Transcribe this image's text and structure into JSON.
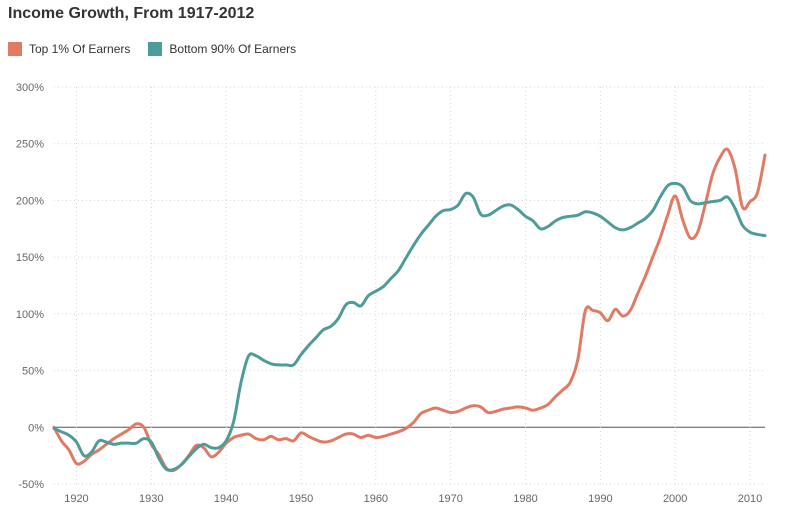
{
  "chart_data": {
    "type": "line",
    "title": "Income Growth, From 1917-2012",
    "xlim": [
      1917,
      2012
    ],
    "ylim": [
      -50,
      300
    ],
    "x_ticks": [
      1920,
      1930,
      1940,
      1950,
      1960,
      1970,
      1980,
      1990,
      2000,
      2010
    ],
    "x_tick_labels": [
      "1920",
      "1930",
      "1940",
      "1950",
      "1960",
      "1970",
      "1980",
      "1990",
      "2000",
      "2010"
    ],
    "y_ticks": [
      -50,
      0,
      50,
      100,
      150,
      200,
      250,
      300
    ],
    "y_tick_labels": [
      "-50%",
      "0%",
      "50%",
      "100%",
      "150%",
      "200%",
      "250%",
      "300%"
    ],
    "grid": true,
    "legend_position": "top-left",
    "series": [
      {
        "name": "Top 1% Of Earners",
        "color": "#e07a64",
        "points": [
          [
            1917,
            0
          ],
          [
            1918,
            -12
          ],
          [
            1919,
            -20
          ],
          [
            1920,
            -32
          ],
          [
            1921,
            -30
          ],
          [
            1922,
            -24
          ],
          [
            1923,
            -20
          ],
          [
            1924,
            -15
          ],
          [
            1925,
            -10
          ],
          [
            1926,
            -6
          ],
          [
            1927,
            -2
          ],
          [
            1928,
            3
          ],
          [
            1929,
            0
          ],
          [
            1930,
            -15
          ],
          [
            1931,
            -24
          ],
          [
            1932,
            -36
          ],
          [
            1933,
            -38
          ],
          [
            1934,
            -33
          ],
          [
            1935,
            -25
          ],
          [
            1936,
            -16
          ],
          [
            1937,
            -18
          ],
          [
            1938,
            -26
          ],
          [
            1939,
            -22
          ],
          [
            1940,
            -14
          ],
          [
            1941,
            -9
          ],
          [
            1942,
            -7
          ],
          [
            1943,
            -6
          ],
          [
            1944,
            -10
          ],
          [
            1945,
            -11
          ],
          [
            1946,
            -8
          ],
          [
            1947,
            -11
          ],
          [
            1948,
            -10
          ],
          [
            1949,
            -12
          ],
          [
            1950,
            -5
          ],
          [
            1951,
            -8
          ],
          [
            1952,
            -11
          ],
          [
            1953,
            -13
          ],
          [
            1954,
            -12
          ],
          [
            1955,
            -9
          ],
          [
            1956,
            -6
          ],
          [
            1957,
            -6
          ],
          [
            1958,
            -9
          ],
          [
            1959,
            -7
          ],
          [
            1960,
            -9
          ],
          [
            1961,
            -8
          ],
          [
            1962,
            -6
          ],
          [
            1963,
            -4
          ],
          [
            1964,
            -1
          ],
          [
            1965,
            4
          ],
          [
            1966,
            12
          ],
          [
            1967,
            15
          ],
          [
            1968,
            17
          ],
          [
            1969,
            15
          ],
          [
            1970,
            13
          ],
          [
            1971,
            14
          ],
          [
            1972,
            17
          ],
          [
            1973,
            19
          ],
          [
            1974,
            18
          ],
          [
            1975,
            13
          ],
          [
            1976,
            14
          ],
          [
            1977,
            16
          ],
          [
            1978,
            17
          ],
          [
            1979,
            18
          ],
          [
            1980,
            17
          ],
          [
            1981,
            15
          ],
          [
            1982,
            17
          ],
          [
            1983,
            20
          ],
          [
            1984,
            27
          ],
          [
            1985,
            33
          ],
          [
            1986,
            40
          ],
          [
            1987,
            60
          ],
          [
            1988,
            103
          ],
          [
            1989,
            103
          ],
          [
            1990,
            101
          ],
          [
            1991,
            94
          ],
          [
            1992,
            104
          ],
          [
            1993,
            98
          ],
          [
            1994,
            103
          ],
          [
            1995,
            118
          ],
          [
            1996,
            133
          ],
          [
            1997,
            150
          ],
          [
            1998,
            167
          ],
          [
            1999,
            187
          ],
          [
            2000,
            204
          ],
          [
            2001,
            183
          ],
          [
            2002,
            167
          ],
          [
            2003,
            172
          ],
          [
            2004,
            196
          ],
          [
            2005,
            223
          ],
          [
            2006,
            238
          ],
          [
            2007,
            245
          ],
          [
            2008,
            228
          ],
          [
            2009,
            194
          ],
          [
            2010,
            199
          ],
          [
            2011,
            207
          ],
          [
            2012,
            240
          ]
        ]
      },
      {
        "name": "Bottom 90% Of Earners",
        "color": "#4e9c99",
        "points": [
          [
            1917,
            -1
          ],
          [
            1918,
            -4
          ],
          [
            1919,
            -7
          ],
          [
            1920,
            -13
          ],
          [
            1921,
            -25
          ],
          [
            1922,
            -22
          ],
          [
            1923,
            -12
          ],
          [
            1924,
            -13
          ],
          [
            1925,
            -15
          ],
          [
            1926,
            -14
          ],
          [
            1927,
            -14
          ],
          [
            1928,
            -14
          ],
          [
            1929,
            -10
          ],
          [
            1930,
            -13
          ],
          [
            1931,
            -27
          ],
          [
            1932,
            -37
          ],
          [
            1933,
            -37
          ],
          [
            1934,
            -33
          ],
          [
            1935,
            -26
          ],
          [
            1936,
            -19
          ],
          [
            1937,
            -15
          ],
          [
            1938,
            -18
          ],
          [
            1939,
            -18
          ],
          [
            1940,
            -12
          ],
          [
            1941,
            5
          ],
          [
            1942,
            40
          ],
          [
            1943,
            63
          ],
          [
            1944,
            63
          ],
          [
            1945,
            59
          ],
          [
            1946,
            56
          ],
          [
            1947,
            55
          ],
          [
            1948,
            55
          ],
          [
            1949,
            55
          ],
          [
            1950,
            64
          ],
          [
            1951,
            72
          ],
          [
            1952,
            79
          ],
          [
            1953,
            86
          ],
          [
            1954,
            89
          ],
          [
            1955,
            96
          ],
          [
            1956,
            108
          ],
          [
            1957,
            110
          ],
          [
            1958,
            107
          ],
          [
            1959,
            116
          ],
          [
            1960,
            120
          ],
          [
            1961,
            124
          ],
          [
            1962,
            131
          ],
          [
            1963,
            138
          ],
          [
            1964,
            149
          ],
          [
            1965,
            160
          ],
          [
            1966,
            170
          ],
          [
            1967,
            178
          ],
          [
            1968,
            186
          ],
          [
            1969,
            191
          ],
          [
            1970,
            192
          ],
          [
            1971,
            196
          ],
          [
            1972,
            206
          ],
          [
            1973,
            203
          ],
          [
            1974,
            188
          ],
          [
            1975,
            187
          ],
          [
            1976,
            191
          ],
          [
            1977,
            195
          ],
          [
            1978,
            196
          ],
          [
            1979,
            192
          ],
          [
            1980,
            186
          ],
          [
            1981,
            182
          ],
          [
            1982,
            175
          ],
          [
            1983,
            177
          ],
          [
            1984,
            182
          ],
          [
            1985,
            185
          ],
          [
            1986,
            186
          ],
          [
            1987,
            187
          ],
          [
            1988,
            190
          ],
          [
            1989,
            189
          ],
          [
            1990,
            186
          ],
          [
            1991,
            181
          ],
          [
            1992,
            176
          ],
          [
            1993,
            174
          ],
          [
            1994,
            176
          ],
          [
            1995,
            180
          ],
          [
            1996,
            184
          ],
          [
            1997,
            191
          ],
          [
            1998,
            203
          ],
          [
            1999,
            213
          ],
          [
            2000,
            215
          ],
          [
            2001,
            212
          ],
          [
            2002,
            200
          ],
          [
            2003,
            197
          ],
          [
            2004,
            198
          ],
          [
            2005,
            199
          ],
          [
            2006,
            200
          ],
          [
            2007,
            203
          ],
          [
            2008,
            193
          ],
          [
            2009,
            178
          ],
          [
            2010,
            172
          ],
          [
            2011,
            170
          ],
          [
            2012,
            169
          ]
        ]
      }
    ]
  }
}
